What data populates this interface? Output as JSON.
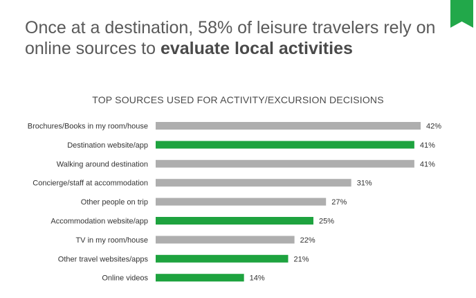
{
  "headline": {
    "line1": "Once at a destination, 58% of leisure travelers rely on",
    "line2_prefix": "online sources to ",
    "line2_bold": "evaluate local activities"
  },
  "colors": {
    "online": "#1ea33f",
    "offline": "#aeaeae",
    "bookmark": "#22a84a",
    "text": "#333333"
  },
  "bookmark_icon": "bookmark-ribbon-icon",
  "chart_data": {
    "type": "bar",
    "orientation": "horizontal",
    "title": "TOP SOURCES USED FOR ACTIVITY/EXCURSION DECISIONS",
    "xlabel": "",
    "ylabel": "",
    "xlim": [
      0,
      42
    ],
    "grid": false,
    "legend": "none",
    "categories": [
      "Brochures/Books in my room/house",
      "Destination website/app",
      "Walking around destination",
      "Concierge/staff at accommodation",
      "Other people on trip",
      "Accommodation website/app",
      "TV in my room/house",
      "Other travel websites/apps",
      "Online videos"
    ],
    "values": [
      42,
      41,
      41,
      31,
      27,
      25,
      22,
      21,
      14
    ],
    "value_labels": [
      "42%",
      "41%",
      "41%",
      "31%",
      "27%",
      "25%",
      "22%",
      "21%",
      "14%"
    ],
    "bar_colors": [
      "offline",
      "online",
      "offline",
      "offline",
      "offline",
      "online",
      "offline",
      "online",
      "online"
    ]
  }
}
